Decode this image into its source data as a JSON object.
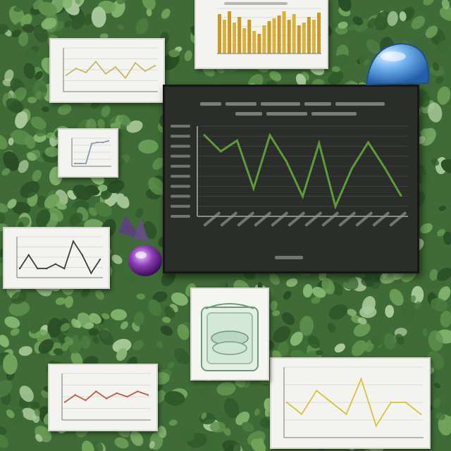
{
  "main_chart": {
    "series": [
      {
        "values": [
          9,
          7.2,
          8.4,
          3.1,
          9,
          6.1,
          2.2,
          8.1,
          1.1,
          5.3,
          8.2,
          5.4,
          2.3
        ]
      }
    ],
    "line_color": "#5d9a38"
  },
  "side_charts": [
    {
      "type": "bar",
      "values": [
        28,
        24,
        30,
        22,
        26,
        18,
        24,
        16,
        14,
        20,
        23,
        25,
        27,
        30,
        24,
        28,
        20,
        22,
        26,
        24,
        29
      ]
    },
    {
      "type": "line",
      "values": [
        5,
        5.5,
        5.2,
        6,
        5.1,
        5.6,
        4.8,
        5.9,
        5.3,
        5.7
      ]
    },
    {
      "type": "line",
      "values": [
        1,
        1,
        1,
        8,
        8.5,
        8.5,
        9
      ]
    },
    {
      "type": "line",
      "values": [
        3,
        6,
        3,
        3,
        4,
        3,
        9,
        6,
        2,
        5
      ]
    },
    {
      "type": "line",
      "values": [
        3,
        3.4,
        3.1,
        3.6,
        3.2,
        3.5,
        3.3,
        3.6,
        3.4
      ]
    },
    {
      "type": "line",
      "values": [
        6,
        5,
        7,
        6,
        5,
        8,
        4,
        6,
        6,
        5
      ]
    }
  ],
  "colors": {
    "accent_blue": "#3d86d6",
    "plant_purple": "#7a33a0",
    "highlight_line": "#d8c23a"
  }
}
